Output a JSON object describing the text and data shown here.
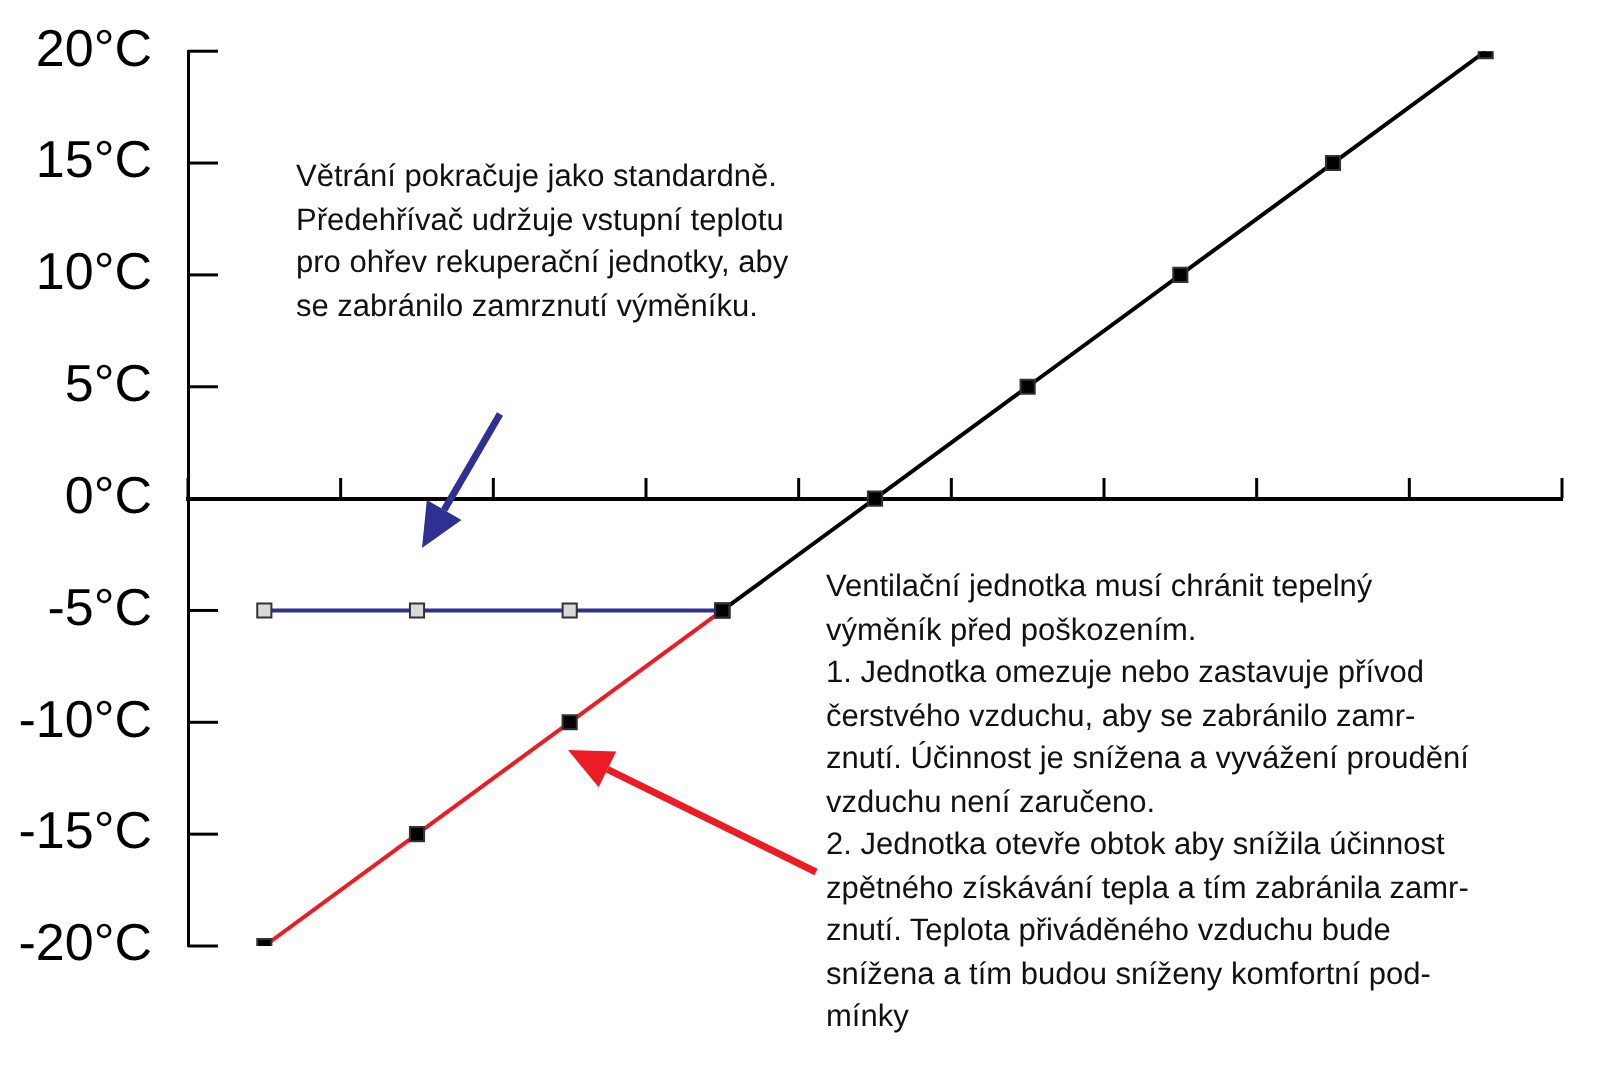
{
  "chart_data": {
    "type": "line",
    "categories": [
      null,
      null,
      null,
      null,
      null,
      null,
      null,
      null,
      null
    ],
    "series": [
      {
        "color": "#000000",
        "colors": [
          "#000000",
          "#000000",
          "#000000",
          "#000000",
          "#000000",
          "#000000",
          "#000000",
          "#000000",
          "#000000"
        ],
        "values": [
          null,
          null,
          null,
          -5,
          0,
          5,
          10,
          15,
          20
        ]
      },
      {
        "color": "#ed1c24",
        "colors": [
          "#000000",
          "#000000",
          "#000000",
          "#000000",
          "#000000",
          "#000000",
          "#000000",
          "#000000",
          "#000000"
        ],
        "values": [
          -20,
          -15,
          -10,
          -5,
          null,
          null,
          null,
          null,
          null
        ]
      },
      {
        "color": "#2e3192",
        "colors": [
          "#d9d9d9",
          "#d9d9d9",
          "#d9d9d9",
          "#000000",
          "#000000",
          "#000000",
          "#000000",
          "#000000",
          "#000000"
        ],
        "values": [
          -5,
          -5,
          -5,
          -5,
          null,
          null,
          null,
          null,
          null
        ]
      }
    ],
    "ylim": [
      -20,
      20
    ],
    "yticks": [
      {
        "value": -20,
        "label": "-20°C"
      },
      {
        "value": -15,
        "label": "-15°C"
      },
      {
        "value": -10,
        "label": "-10°C"
      },
      {
        "value": -5,
        "label": "-5°C"
      },
      {
        "value": 0,
        "label": "0°C"
      },
      {
        "value": 5,
        "label": "5°C"
      },
      {
        "value": 10,
        "label": "10°C"
      },
      {
        "value": 15,
        "label": "15°C"
      },
      {
        "value": 20,
        "label": "20°C"
      }
    ],
    "tick_labels": "y",
    "grid": false,
    "legend": false,
    "marker": "square",
    "line_style": "solid",
    "annotations": [
      "Větrání pokračuje jako standardně.\nPředehřívač udržuje vstupní teplotu\npro ohřev rekuperační jednotky, aby\nse zabránilo zamrznutí výměníku.",
      "Ventilační jednotka musí chránit tepelný\nvýměník před poškozením.\n1. Jednotka omezuje nebo zastavuje přívod\nčerstvého vzduchu, aby se zabránilo zamr-\nznutí. Účinnost je snížena a vyvážení proudění\nvzduchu není zaručeno.\n2. Jednotka otevře obtok aby snížila účinnost\nzpětného získávání tepla a tím zabránila zamr-\nznutí. Teplota přiváděného vzduchu bude\nsnížena a tím budou sníženy komfortní pod-\nmínky"
    ]
  }
}
